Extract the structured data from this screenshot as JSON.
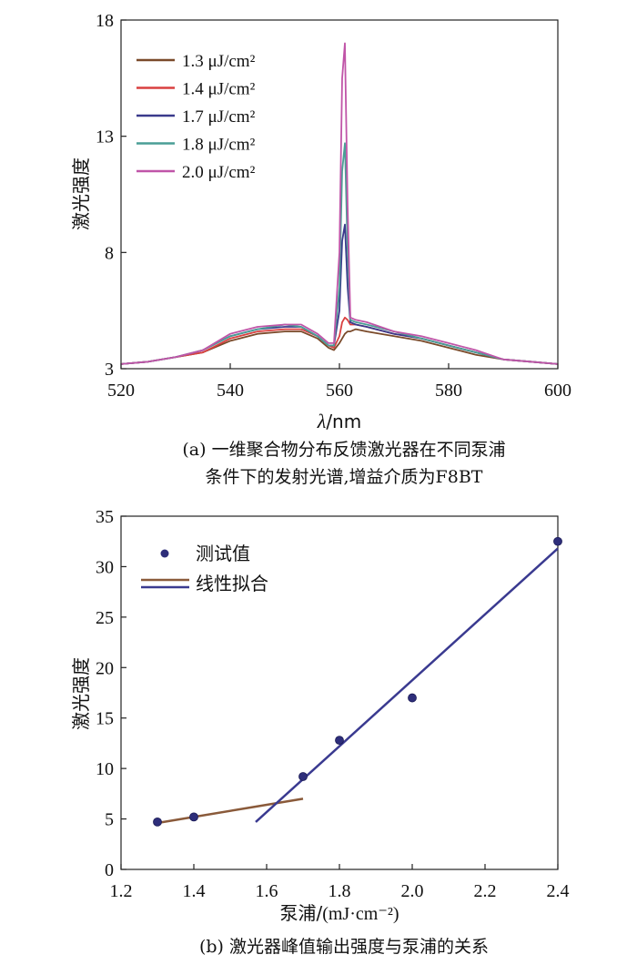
{
  "colors": {
    "s13": "#7a4a2a",
    "s14": "#d94040",
    "s17": "#3a3a8c",
    "s18": "#4a9e96",
    "s20": "#c055a8",
    "fit_low": "#8a5a3a",
    "fit_high": "#3a3a90",
    "points": "#2e2e7a"
  },
  "chart_data": [
    {
      "type": "line",
      "xlabel_sym": "λ",
      "xlabel_unit": "/nm",
      "ylabel": "激光强度",
      "xlim": [
        520,
        600
      ],
      "ylim": [
        3,
        18
      ],
      "xticks": [
        "520",
        "540",
        "560",
        "580",
        "600"
      ],
      "yticks": [
        "3",
        "8",
        "13",
        "18"
      ],
      "legend_position": "top-left",
      "caption_line1": "(a) 一维聚合物分布反馈激光器在不同泵浦",
      "caption_line2": "条件下的发射光谱,增益介质为F8BT",
      "x": [
        520,
        525,
        530,
        535,
        540,
        545,
        550,
        553,
        556,
        558,
        559,
        560,
        560.5,
        561,
        561.5,
        562,
        563,
        565,
        570,
        575,
        580,
        585,
        590,
        595,
        600
      ],
      "series": [
        {
          "name": "1.3 μJ/cm²",
          "color_key": "s13",
          "values": [
            3.2,
            3.3,
            3.5,
            3.7,
            4.2,
            4.5,
            4.6,
            4.6,
            4.3,
            3.9,
            3.8,
            4.1,
            4.3,
            4.5,
            4.6,
            4.6,
            4.7,
            4.6,
            4.4,
            4.2,
            3.9,
            3.6,
            3.4,
            3.3,
            3.2
          ]
        },
        {
          "name": "1.4 μJ/cm²",
          "color_key": "s14",
          "values": [
            3.2,
            3.3,
            3.5,
            3.7,
            4.3,
            4.6,
            4.7,
            4.7,
            4.4,
            4.0,
            3.9,
            4.4,
            5.0,
            5.2,
            5.1,
            4.9,
            4.9,
            4.8,
            4.5,
            4.3,
            4.0,
            3.7,
            3.4,
            3.3,
            3.2
          ]
        },
        {
          "name": "1.7 μJ/cm²",
          "color_key": "s17",
          "values": [
            3.2,
            3.3,
            3.5,
            3.8,
            4.4,
            4.7,
            4.8,
            4.8,
            4.4,
            4.0,
            4.0,
            5.5,
            8.5,
            9.2,
            6.5,
            5.0,
            4.9,
            4.8,
            4.5,
            4.3,
            4.0,
            3.7,
            3.4,
            3.3,
            3.2
          ]
        },
        {
          "name": "1.8 μJ/cm²",
          "color_key": "s18",
          "values": [
            3.2,
            3.3,
            3.5,
            3.8,
            4.4,
            4.7,
            4.9,
            4.8,
            4.4,
            4.0,
            4.0,
            6.5,
            11.5,
            12.7,
            8.0,
            5.1,
            5.0,
            4.9,
            4.6,
            4.3,
            4.0,
            3.7,
            3.4,
            3.3,
            3.2
          ]
        },
        {
          "name": "2.0 μJ/cm²",
          "color_key": "s20",
          "values": [
            3.2,
            3.3,
            3.5,
            3.8,
            4.5,
            4.8,
            4.9,
            4.9,
            4.5,
            4.1,
            4.1,
            8.0,
            15.5,
            17.0,
            10.0,
            5.2,
            5.1,
            5.0,
            4.6,
            4.4,
            4.1,
            3.8,
            3.4,
            3.3,
            3.2
          ]
        }
      ]
    },
    {
      "type": "scatter",
      "xlabel_sym": "泵浦/",
      "xlabel_unit": "(mJ·cm⁻²)",
      "ylabel": "激光强度",
      "xlim": [
        1.2,
        2.4
      ],
      "ylim": [
        0,
        35
      ],
      "xticks": [
        "1.2",
        "1.4",
        "1.6",
        "1.8",
        "2.0",
        "2.2",
        "2.4"
      ],
      "yticks": [
        "0",
        "5",
        "10",
        "15",
        "20",
        "25",
        "30",
        "35"
      ],
      "legend_position": "top-left",
      "legend_points": "测试值",
      "legend_fit": "线性拟合",
      "caption_line1": "(b) 激光器峰值输出强度与泵浦的关系",
      "points": {
        "x": [
          1.3,
          1.4,
          1.7,
          1.8,
          2.0,
          2.4
        ],
        "y": [
          4.7,
          5.2,
          9.2,
          12.8,
          17.0,
          32.5
        ]
      },
      "fit_low": {
        "x": [
          1.3,
          1.7
        ],
        "y": [
          4.6,
          7.0
        ]
      },
      "fit_high": {
        "x": [
          1.57,
          2.4
        ],
        "y": [
          4.7,
          31.8
        ]
      }
    }
  ]
}
